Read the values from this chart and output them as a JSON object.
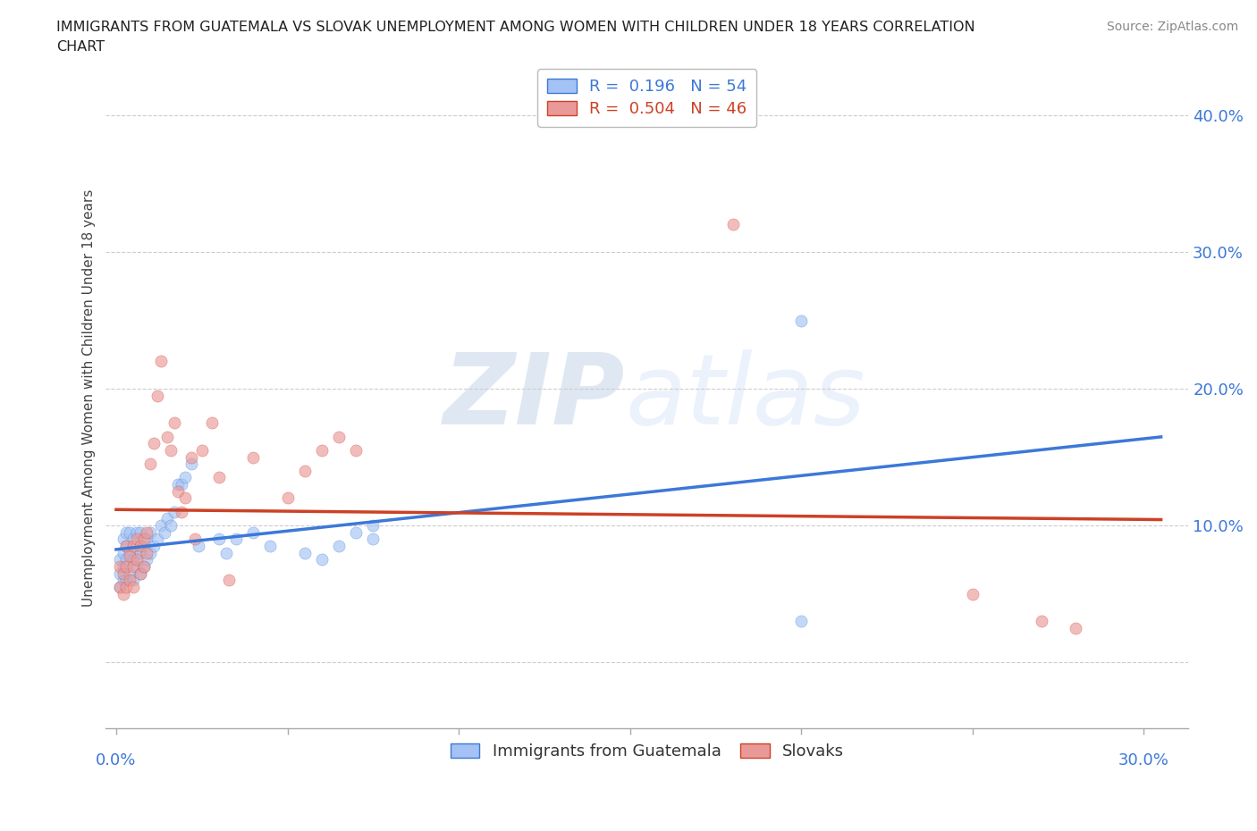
{
  "title_line1": "IMMIGRANTS FROM GUATEMALA VS SLOVAK UNEMPLOYMENT AMONG WOMEN WITH CHILDREN UNDER 18 YEARS CORRELATION",
  "title_line2": "CHART",
  "source": "Source: ZipAtlas.com",
  "ylabel": "Unemployment Among Women with Children Under 18 years",
  "y_ticks": [
    0.0,
    0.1,
    0.2,
    0.3,
    0.4
  ],
  "y_tick_labels": [
    "",
    "10.0%",
    "20.0%",
    "30.0%",
    "40.0%"
  ],
  "xlim": [
    -0.003,
    0.313
  ],
  "ylim": [
    -0.048,
    0.435
  ],
  "blue_color": "#a4c2f4",
  "pink_color": "#ea9999",
  "blue_line_color": "#3c78d8",
  "pink_line_color": "#cc4125",
  "legend_label_blue": "R =  0.196   N = 54",
  "legend_label_pink": "R =  0.504   N = 46",
  "watermark": "ZIPatlas",
  "blue_scatter_x": [
    0.001,
    0.001,
    0.001,
    0.002,
    0.002,
    0.002,
    0.002,
    0.003,
    0.003,
    0.003,
    0.003,
    0.004,
    0.004,
    0.004,
    0.005,
    0.005,
    0.005,
    0.006,
    0.006,
    0.006,
    0.007,
    0.007,
    0.007,
    0.008,
    0.008,
    0.009,
    0.009,
    0.01,
    0.01,
    0.011,
    0.012,
    0.013,
    0.014,
    0.015,
    0.016,
    0.017,
    0.018,
    0.019,
    0.02,
    0.022,
    0.024,
    0.03,
    0.032,
    0.035,
    0.04,
    0.045,
    0.055,
    0.06,
    0.065,
    0.075,
    0.075,
    0.2,
    0.2,
    0.07
  ],
  "blue_scatter_y": [
    0.055,
    0.065,
    0.075,
    0.06,
    0.07,
    0.08,
    0.09,
    0.06,
    0.075,
    0.085,
    0.095,
    0.065,
    0.08,
    0.095,
    0.06,
    0.075,
    0.09,
    0.07,
    0.08,
    0.095,
    0.065,
    0.08,
    0.095,
    0.07,
    0.085,
    0.075,
    0.09,
    0.08,
    0.095,
    0.085,
    0.09,
    0.1,
    0.095,
    0.105,
    0.1,
    0.11,
    0.13,
    0.13,
    0.135,
    0.145,
    0.085,
    0.09,
    0.08,
    0.09,
    0.095,
    0.085,
    0.08,
    0.075,
    0.085,
    0.09,
    0.1,
    0.25,
    0.03,
    0.095
  ],
  "pink_scatter_x": [
    0.001,
    0.001,
    0.002,
    0.002,
    0.003,
    0.003,
    0.003,
    0.004,
    0.004,
    0.005,
    0.005,
    0.005,
    0.006,
    0.006,
    0.007,
    0.007,
    0.008,
    0.008,
    0.009,
    0.009,
    0.01,
    0.011,
    0.012,
    0.013,
    0.015,
    0.016,
    0.017,
    0.018,
    0.019,
    0.02,
    0.022,
    0.023,
    0.025,
    0.028,
    0.03,
    0.033,
    0.04,
    0.05,
    0.055,
    0.06,
    0.065,
    0.07,
    0.18,
    0.25,
    0.27,
    0.28
  ],
  "pink_scatter_y": [
    0.055,
    0.07,
    0.05,
    0.065,
    0.055,
    0.07,
    0.085,
    0.06,
    0.078,
    0.055,
    0.07,
    0.085,
    0.075,
    0.09,
    0.065,
    0.085,
    0.07,
    0.09,
    0.08,
    0.095,
    0.145,
    0.16,
    0.195,
    0.22,
    0.165,
    0.155,
    0.175,
    0.125,
    0.11,
    0.12,
    0.15,
    0.09,
    0.155,
    0.175,
    0.135,
    0.06,
    0.15,
    0.12,
    0.14,
    0.155,
    0.165,
    0.155,
    0.32,
    0.05,
    0.03,
    0.025
  ],
  "background_color": "#ffffff",
  "grid_color": "#cccccc"
}
